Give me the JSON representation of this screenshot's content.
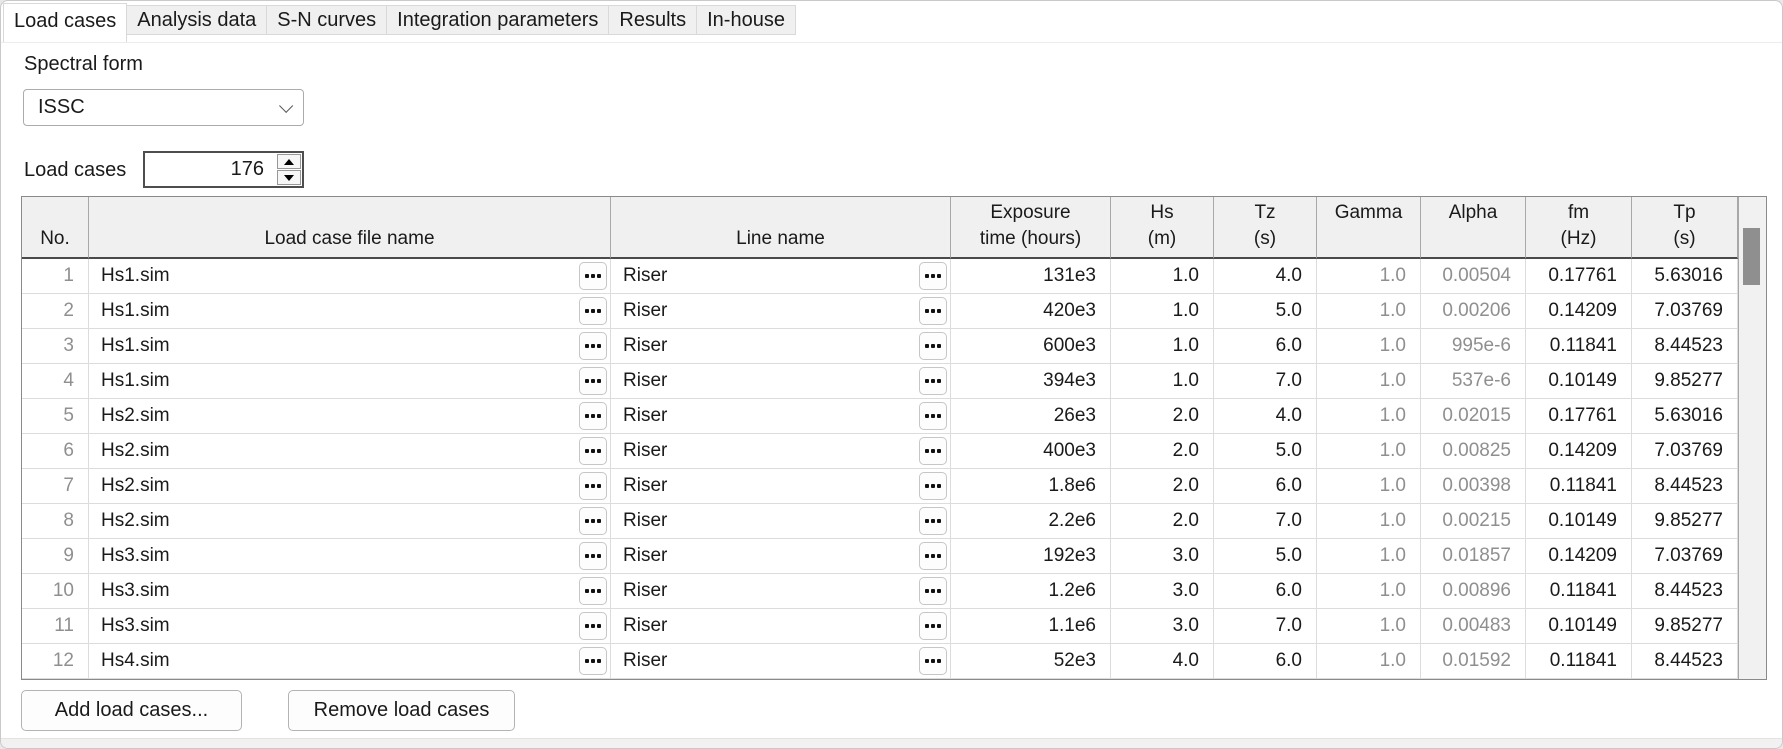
{
  "tabs": [
    {
      "label": "Load cases",
      "active": true
    },
    {
      "label": "Analysis data",
      "active": false
    },
    {
      "label": "S-N curves",
      "active": false
    },
    {
      "label": "Integration parameters",
      "active": false
    },
    {
      "label": "Results",
      "active": false
    },
    {
      "label": "In-house",
      "active": false
    }
  ],
  "spectral_form": {
    "label": "Spectral form",
    "value": "ISSC"
  },
  "load_cases_field": {
    "label": "Load cases",
    "value": "176"
  },
  "table": {
    "columns": [
      {
        "id": "no",
        "line1": "",
        "line2": "No.",
        "align": "num",
        "gray": true
      },
      {
        "id": "file",
        "line1": "",
        "line2": "Load case file name",
        "align": "txt",
        "gray": false
      },
      {
        "id": "line",
        "line1": "",
        "line2": "Line name",
        "align": "txt",
        "gray": false
      },
      {
        "id": "exposure",
        "line1": "Exposure",
        "line2": "time (hours)",
        "align": "num",
        "gray": false
      },
      {
        "id": "hs",
        "line1": "Hs",
        "line2": "(m)",
        "align": "num",
        "gray": false
      },
      {
        "id": "tz",
        "line1": "Tz",
        "line2": "(s)",
        "align": "num",
        "gray": false
      },
      {
        "id": "gamma",
        "line1": "Gamma",
        "line2": "",
        "align": "num",
        "gray": true
      },
      {
        "id": "alpha",
        "line1": "Alpha",
        "line2": "",
        "align": "num",
        "gray": true
      },
      {
        "id": "fm",
        "line1": "fm",
        "line2": "(Hz)",
        "align": "num",
        "gray": false
      },
      {
        "id": "tp",
        "line1": "Tp",
        "line2": "(s)",
        "align": "num",
        "gray": false
      }
    ],
    "rows": [
      {
        "no": "1",
        "file": "Hs1.sim",
        "line": "Riser",
        "exposure": "131e3",
        "hs": "1.0",
        "tz": "4.0",
        "gamma": "1.0",
        "alpha": "0.00504",
        "fm": "0.17761",
        "tp": "5.63016"
      },
      {
        "no": "2",
        "file": "Hs1.sim",
        "line": "Riser",
        "exposure": "420e3",
        "hs": "1.0",
        "tz": "5.0",
        "gamma": "1.0",
        "alpha": "0.00206",
        "fm": "0.14209",
        "tp": "7.03769"
      },
      {
        "no": "3",
        "file": "Hs1.sim",
        "line": "Riser",
        "exposure": "600e3",
        "hs": "1.0",
        "tz": "6.0",
        "gamma": "1.0",
        "alpha": "995e-6",
        "fm": "0.11841",
        "tp": "8.44523"
      },
      {
        "no": "4",
        "file": "Hs1.sim",
        "line": "Riser",
        "exposure": "394e3",
        "hs": "1.0",
        "tz": "7.0",
        "gamma": "1.0",
        "alpha": "537e-6",
        "fm": "0.10149",
        "tp": "9.85277"
      },
      {
        "no": "5",
        "file": "Hs2.sim",
        "line": "Riser",
        "exposure": "26e3",
        "hs": "2.0",
        "tz": "4.0",
        "gamma": "1.0",
        "alpha": "0.02015",
        "fm": "0.17761",
        "tp": "5.63016"
      },
      {
        "no": "6",
        "file": "Hs2.sim",
        "line": "Riser",
        "exposure": "400e3",
        "hs": "2.0",
        "tz": "5.0",
        "gamma": "1.0",
        "alpha": "0.00825",
        "fm": "0.14209",
        "tp": "7.03769"
      },
      {
        "no": "7",
        "file": "Hs2.sim",
        "line": "Riser",
        "exposure": "1.8e6",
        "hs": "2.0",
        "tz": "6.0",
        "gamma": "1.0",
        "alpha": "0.00398",
        "fm": "0.11841",
        "tp": "8.44523"
      },
      {
        "no": "8",
        "file": "Hs2.sim",
        "line": "Riser",
        "exposure": "2.2e6",
        "hs": "2.0",
        "tz": "7.0",
        "gamma": "1.0",
        "alpha": "0.00215",
        "fm": "0.10149",
        "tp": "9.85277"
      },
      {
        "no": "9",
        "file": "Hs3.sim",
        "line": "Riser",
        "exposure": "192e3",
        "hs": "3.0",
        "tz": "5.0",
        "gamma": "1.0",
        "alpha": "0.01857",
        "fm": "0.14209",
        "tp": "7.03769"
      },
      {
        "no": "10",
        "file": "Hs3.sim",
        "line": "Riser",
        "exposure": "1.2e6",
        "hs": "3.0",
        "tz": "6.0",
        "gamma": "1.0",
        "alpha": "0.00896",
        "fm": "0.11841",
        "tp": "8.44523"
      },
      {
        "no": "11",
        "file": "Hs3.sim",
        "line": "Riser",
        "exposure": "1.1e6",
        "hs": "3.0",
        "tz": "7.0",
        "gamma": "1.0",
        "alpha": "0.00483",
        "fm": "0.10149",
        "tp": "9.85277"
      },
      {
        "no": "12",
        "file": "Hs4.sim",
        "line": "Riser",
        "exposure": "52e3",
        "hs": "4.0",
        "tz": "6.0",
        "gamma": "1.0",
        "alpha": "0.01592",
        "fm": "0.11841",
        "tp": "8.44523"
      }
    ]
  },
  "buttons": {
    "add": "Add load cases...",
    "remove": "Remove load cases"
  },
  "colors": {
    "gray_text": "#8f8f8f",
    "header_bg": "#f0f0f0",
    "scroll_thumb": "#8f8f8f",
    "grid_border": "#8a8a8a"
  }
}
